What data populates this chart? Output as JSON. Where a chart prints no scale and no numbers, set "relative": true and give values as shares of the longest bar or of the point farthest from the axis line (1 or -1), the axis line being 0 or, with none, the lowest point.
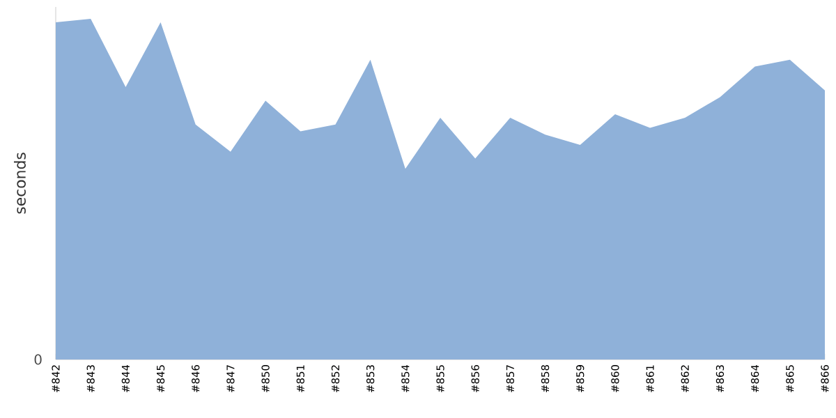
{
  "chart_data": {
    "type": "area",
    "ylabel": "seconds",
    "relative": true,
    "annotations": [
      "0"
    ],
    "color": "#8fb1d9",
    "categories": [
      "#842",
      "#843",
      "#844",
      "#845",
      "#846",
      "#847",
      "#850",
      "#851",
      "#852",
      "#853",
      "#854",
      "#855",
      "#856",
      "#857",
      "#858",
      "#859",
      "#860",
      "#861",
      "#862",
      "#863",
      "#864",
      "#865",
      "#866"
    ],
    "values": [
      0.99,
      1,
      0.8,
      0.99,
      0.69,
      0.61,
      0.76,
      0.67,
      0.69,
      0.88,
      0.56,
      0.71,
      0.59,
      0.71,
      0.66,
      0.63,
      0.72,
      0.68,
      0.71,
      0.77,
      0.86,
      0.88,
      0.79
    ]
  }
}
